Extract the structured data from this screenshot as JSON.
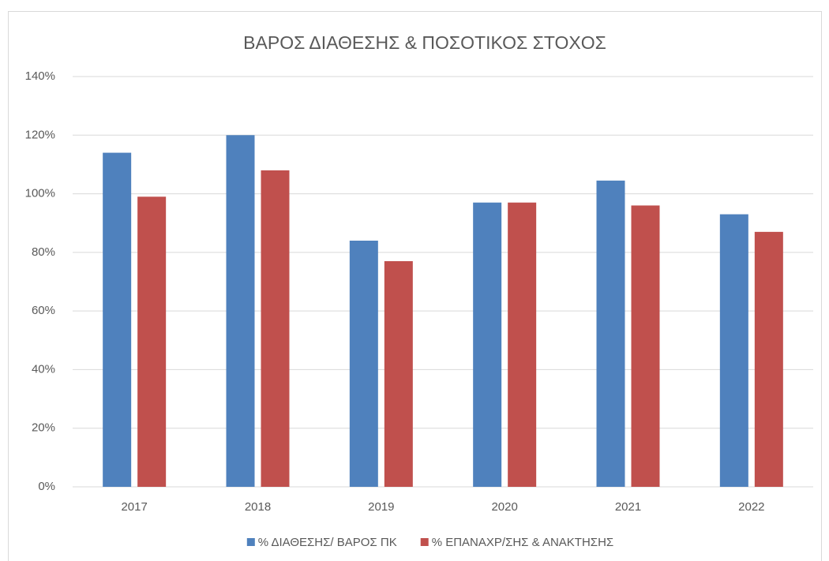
{
  "chart_data": {
    "type": "bar",
    "title": "ΒΑΡΟΣ ΔΙΑΘΕΣΗΣ & ΠΟΣΟΤΙΚΟΣ ΣΤΟΧΟΣ",
    "categories": [
      "2017",
      "2018",
      "2019",
      "2020",
      "2021",
      "2022"
    ],
    "series": [
      {
        "name": "% ΔΙΑΘΕΣΗΣ/  ΒΑΡΟΣ ΠΚ",
        "color": "#4f81bd",
        "values": [
          114,
          120,
          84,
          97,
          104.5,
          93
        ]
      },
      {
        "name": "% ΕΠΑΝΑΧΡ/ΣΗΣ & ΑΝΑΚΤΗΣΗΣ",
        "color": "#c0504d",
        "values": [
          99,
          108,
          77,
          97,
          96,
          87
        ]
      }
    ],
    "ylim": [
      0,
      140
    ],
    "yticks": [
      {
        "value": 0,
        "label": "0%"
      },
      {
        "value": 20,
        "label": "20%"
      },
      {
        "value": 40,
        "label": "40%"
      },
      {
        "value": 60,
        "label": "60%"
      },
      {
        "value": 80,
        "label": "80%"
      },
      {
        "value": 100,
        "label": "100%"
      },
      {
        "value": 120,
        "label": "120%"
      },
      {
        "value": 140,
        "label": "140%"
      }
    ],
    "grid": true,
    "legend": "bottom"
  }
}
